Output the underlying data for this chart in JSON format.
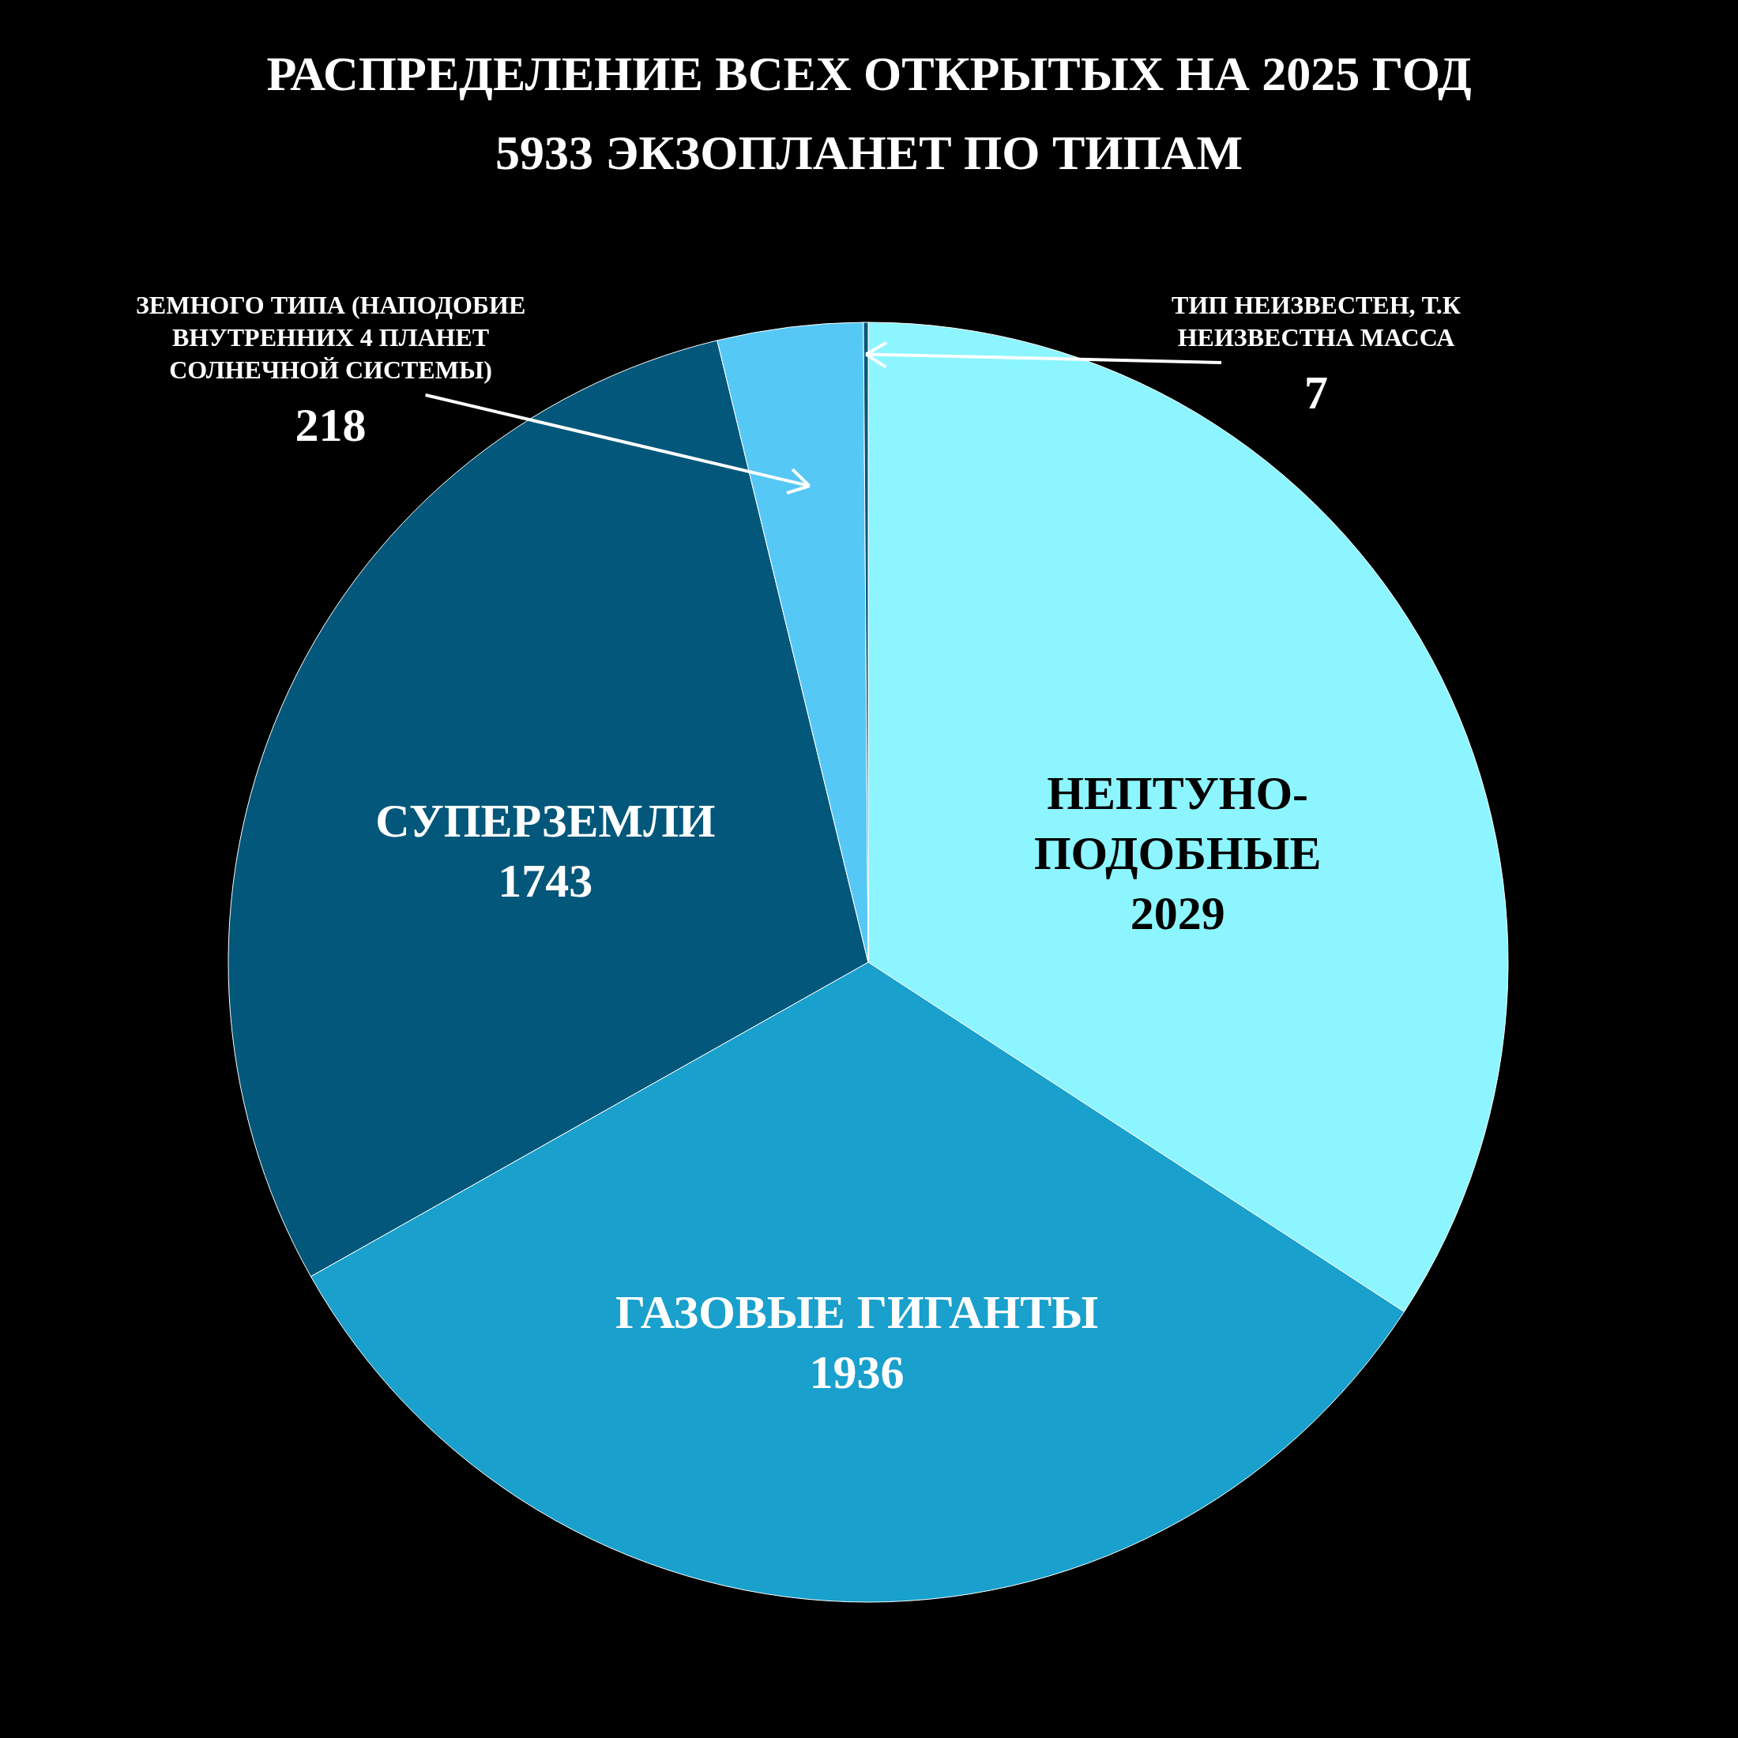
{
  "chart_data": {
    "type": "pie",
    "title": "РАСПРЕДЕЛЕНИЕ ВСЕХ ОТКРЫТЫХ НА 2025 ГОД 5933 ЭКЗОПЛАНЕТ ПО ТИПАМ",
    "categories": [
      "НЕПТУНО-ПОДОБНЫЕ",
      "ГАЗОВЫЕ ГИГАНТЫ",
      "СУПЕРЗЕМЛИ",
      "ЗЕМНОГО ТИПА (НАПОДОБИЕ ВНУТРЕННИХ 4 ПЛАНЕТ СОЛНЕЧНОЙ СИСТЕМЫ)",
      "ТИП НЕИЗВЕСТЕН, Т.К НЕИЗВЕСТНА МАССА"
    ],
    "values": [
      2029,
      1936,
      1743,
      218,
      7
    ],
    "colors": [
      "#8cf5ff",
      "#19a0cc",
      "#02577a",
      "#56c8f5",
      "#02577a"
    ],
    "data_labels": true
  }
}
